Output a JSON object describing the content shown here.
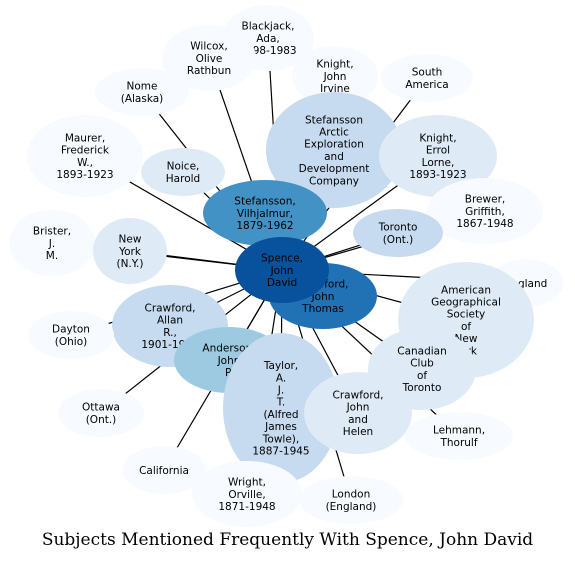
{
  "title": "Subjects Mentioned Frequently With Spence, John David",
  "palette": {
    "lightest": "#f7fbff",
    "light": "#deebf7",
    "pale": "#c6dbef",
    "mid": "#9ecae1",
    "medium": "#4292c6",
    "strong": "#2171b5",
    "darkest": "#08519c"
  },
  "center": "spence",
  "nodes": [
    {
      "id": "blackjack",
      "lines": [
        "Blackjack,",
        "Ada,",
        "1898-1983"
      ],
      "color": "lightest"
    },
    {
      "id": "wilcox",
      "lines": [
        "Wilcox,",
        "Olive",
        "Rathbun"
      ],
      "color": "lightest"
    },
    {
      "id": "knight_john",
      "lines": [
        "Knight,",
        "John",
        "Irvine"
      ],
      "color": "lightest"
    },
    {
      "id": "south_america",
      "lines": [
        "South",
        "America"
      ],
      "color": "lightest"
    },
    {
      "id": "nome",
      "lines": [
        "Nome",
        "(Alaska)"
      ],
      "color": "lightest"
    },
    {
      "id": "stefansson_company",
      "lines": [
        "Stefansson",
        "Arctic",
        "Exploration",
        "and",
        "Development",
        "Company"
      ],
      "color": "pale"
    },
    {
      "id": "maurer",
      "lines": [
        "Maurer,",
        "Frederick",
        "W.,",
        "1893-1923"
      ],
      "color": "lightest"
    },
    {
      "id": "noice",
      "lines": [
        "Noice,",
        "Harold"
      ],
      "color": "light"
    },
    {
      "id": "knight_errol",
      "lines": [
        "Knight,",
        "Errol",
        "Lorne,",
        "1893-1923"
      ],
      "color": "light"
    },
    {
      "id": "stefansson_v",
      "lines": [
        "Stefansson,",
        "Vilhjalmur,",
        "1879-1962"
      ],
      "color": "medium"
    },
    {
      "id": "brewer",
      "lines": [
        "Brewer,",
        "Griffith,",
        "1867-1948"
      ],
      "color": "lightest"
    },
    {
      "id": "brister",
      "lines": [
        "Brister,",
        "J.",
        "M."
      ],
      "color": "lightest"
    },
    {
      "id": "new_york",
      "lines": [
        "New",
        "York",
        "(N.Y.)"
      ],
      "color": "light"
    },
    {
      "id": "toronto",
      "lines": [
        "Toronto",
        "(Ont.)"
      ],
      "color": "pale"
    },
    {
      "id": "spence",
      "lines": [
        "Spence,",
        "John",
        "David"
      ],
      "color": "darkest"
    },
    {
      "id": "england",
      "lines": [
        "England"
      ],
      "color": "lightest"
    },
    {
      "id": "ags",
      "lines": [
        "American",
        "Geographical",
        "Society",
        "of",
        "New",
        "York"
      ],
      "color": "light"
    },
    {
      "id": "crawford_thomas",
      "lines": [
        "Crawford,",
        "John",
        "Thomas"
      ],
      "color": "strong"
    },
    {
      "id": "crawford_allan",
      "lines": [
        "Crawford,",
        "Allan",
        "R.,",
        "1901-1923"
      ],
      "color": "pale"
    },
    {
      "id": "dayton",
      "lines": [
        "Dayton",
        "(Ohio)"
      ],
      "color": "lightest"
    },
    {
      "id": "anderson",
      "lines": [
        "Anderson,",
        "John",
        "P."
      ],
      "color": "mid"
    },
    {
      "id": "canadian_club",
      "lines": [
        "Canadian",
        "Club",
        "of",
        "Toronto"
      ],
      "color": "light"
    },
    {
      "id": "taylor",
      "lines": [
        "Taylor,",
        "A.",
        "J.",
        "T.",
        "(Alfred",
        "James",
        "Towle),",
        "1887-1945"
      ],
      "color": "pale"
    },
    {
      "id": "ottawa",
      "lines": [
        "Ottawa",
        "(Ont.)"
      ],
      "color": "lightest"
    },
    {
      "id": "crawford_john_helen",
      "lines": [
        "Crawford,",
        "John",
        "and",
        "Helen"
      ],
      "color": "light"
    },
    {
      "id": "lehmann",
      "lines": [
        "Lehmann,",
        "Thorulf"
      ],
      "color": "lightest"
    },
    {
      "id": "california",
      "lines": [
        "California"
      ],
      "color": "lightest"
    },
    {
      "id": "wright",
      "lines": [
        "Wright,",
        "Orville,",
        "1871-1948"
      ],
      "color": "lightest"
    },
    {
      "id": "london",
      "lines": [
        "London",
        "(England)"
      ],
      "color": "lightest"
    }
  ],
  "edges": [
    [
      "spence",
      "blackjack"
    ],
    [
      "spence",
      "wilcox"
    ],
    [
      "spence",
      "knight_john"
    ],
    [
      "spence",
      "south_america"
    ],
    [
      "spence",
      "nome"
    ],
    [
      "spence",
      "stefansson_company"
    ],
    [
      "spence",
      "maurer"
    ],
    [
      "spence",
      "noice"
    ],
    [
      "spence",
      "knight_errol"
    ],
    [
      "spence",
      "stefansson_v"
    ],
    [
      "spence",
      "new_york"
    ],
    [
      "spence",
      "toronto"
    ],
    [
      "spence",
      "england"
    ],
    [
      "spence",
      "ags"
    ],
    [
      "spence",
      "crawford_thomas"
    ],
    [
      "spence",
      "crawford_allan"
    ],
    [
      "spence",
      "dayton"
    ],
    [
      "spence",
      "anderson"
    ],
    [
      "spence",
      "canadian_club"
    ],
    [
      "spence",
      "taylor"
    ],
    [
      "spence",
      "ottawa"
    ],
    [
      "spence",
      "crawford_john_helen"
    ],
    [
      "spence",
      "lehmann"
    ],
    [
      "spence",
      "california"
    ],
    [
      "spence",
      "wright"
    ],
    [
      "spence",
      "london"
    ],
    [
      "spence",
      "brewer"
    ],
    [
      "spence",
      "brister"
    ]
  ]
}
